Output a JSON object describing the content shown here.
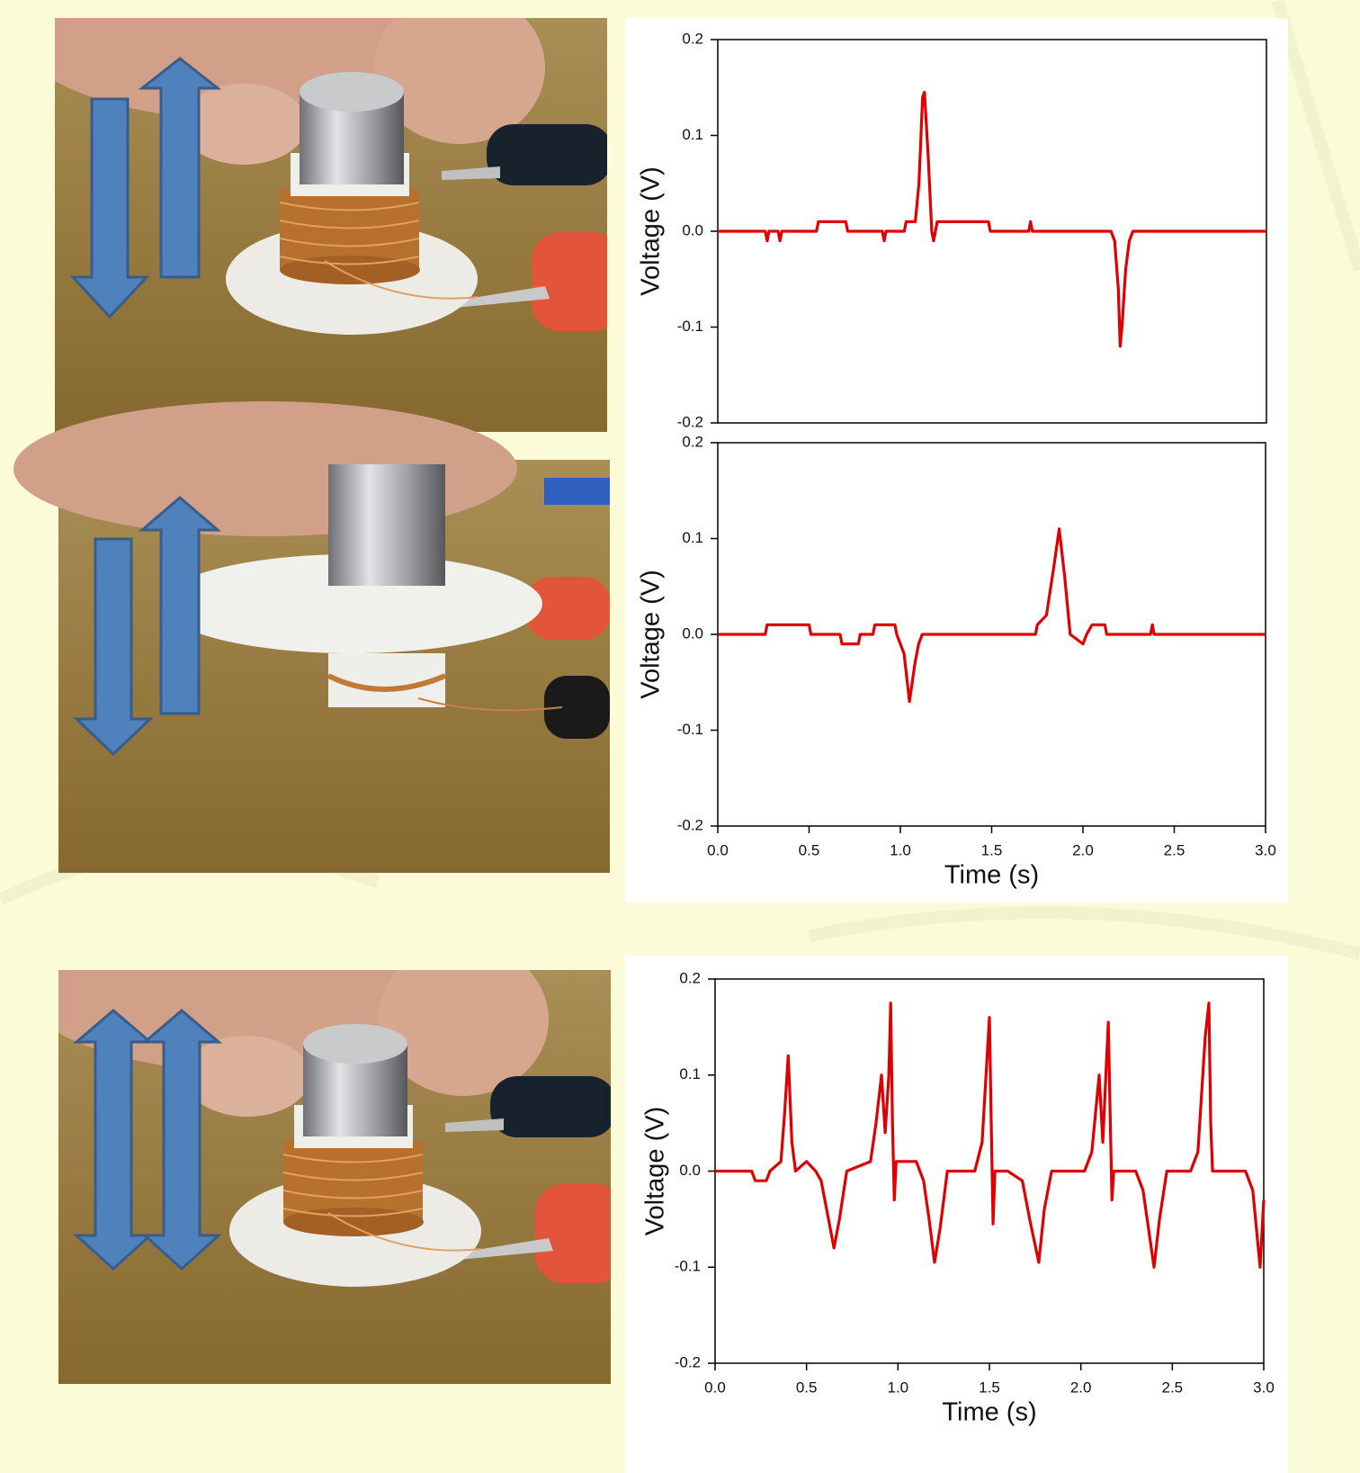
{
  "chart_data": [
    {
      "type": "line",
      "ylabel": "Voltage (V)",
      "xlim": [
        0,
        3
      ],
      "ylim": [
        -0.2,
        0.2
      ],
      "yticks": [
        -0.2,
        -0.1,
        {
          "value": 0,
          "label": "0.0"
        },
        0.1,
        0.2
      ],
      "series": [
        {
          "color": "#e00000",
          "x": [
            0,
            0.26,
            0.27,
            0.28,
            0.33,
            0.34,
            0.35,
            0.54,
            0.55,
            0.7,
            0.71,
            0.9,
            0.91,
            0.92,
            1.02,
            1.03,
            1.08,
            1.1,
            1.12,
            1.13,
            1.15,
            1.17,
            1.18,
            1.2,
            1.22,
            1.48,
            1.49,
            1.7,
            1.71,
            1.72,
            2.15,
            2.17,
            2.19,
            2.2,
            2.21,
            2.23,
            2.25,
            2.27,
            3
          ],
          "values": [
            0,
            0,
            -0.01,
            0,
            0,
            -0.01,
            0,
            0,
            0.01,
            0.01,
            0,
            0,
            -0.01,
            0,
            0,
            0.01,
            0.01,
            0.05,
            0.14,
            0.145,
            0.08,
            0,
            -0.01,
            0.01,
            0.01,
            0.01,
            0,
            0,
            0.01,
            0,
            0,
            -0.01,
            -0.06,
            -0.12,
            -0.1,
            -0.04,
            -0.01,
            0,
            0
          ]
        }
      ]
    },
    {
      "type": "line",
      "ylabel": "Voltage (V)",
      "xlabel": "Time (s)",
      "xlim": [
        0,
        3
      ],
      "ylim": [
        -0.2,
        0.2
      ],
      "xticks": [
        {
          "value": 0,
          "label": "0.0"
        },
        0.5,
        {
          "value": 1,
          "label": "1.0"
        },
        1.5,
        {
          "value": 2,
          "label": "2.0"
        },
        2.5,
        {
          "value": 3,
          "label": "3.0"
        }
      ],
      "yticks": [
        -0.2,
        -0.1,
        {
          "value": 0,
          "label": "0.0"
        },
        0.1,
        0.2
      ],
      "series": [
        {
          "color": "#e00000",
          "x": [
            0,
            0.26,
            0.27,
            0.5,
            0.51,
            0.67,
            0.68,
            0.77,
            0.78,
            0.85,
            0.86,
            0.97,
            0.98,
            1.02,
            1.05,
            1.08,
            1.1,
            1.12,
            1.74,
            1.75,
            1.8,
            1.84,
            1.87,
            1.9,
            1.93,
            2.0,
            2.02,
            2.05,
            2.07,
            2.12,
            2.13,
            2.37,
            2.38,
            2.39,
            3
          ],
          "values": [
            0,
            0,
            0.01,
            0.01,
            0,
            0,
            -0.01,
            -0.01,
            0,
            0,
            0.01,
            0.01,
            0,
            -0.02,
            -0.07,
            -0.03,
            -0.01,
            0,
            0,
            0.01,
            0.02,
            0.07,
            0.11,
            0.06,
            0,
            -0.01,
            0,
            0.01,
            0.01,
            0.01,
            0,
            0,
            0.01,
            0,
            0
          ]
        }
      ]
    },
    {
      "type": "line",
      "ylabel": "Voltage (V)",
      "xlabel": "Time (s)",
      "xlim": [
        0,
        3
      ],
      "ylim": [
        -0.2,
        0.2
      ],
      "xticks": [
        {
          "value": 0,
          "label": "0.0"
        },
        0.5,
        {
          "value": 1,
          "label": "1.0"
        },
        1.5,
        {
          "value": 2,
          "label": "2.0"
        },
        2.5,
        {
          "value": 3,
          "label": "3.0"
        }
      ],
      "yticks": [
        -0.2,
        -0.1,
        {
          "value": 0,
          "label": "0.0"
        },
        0.1,
        0.2
      ],
      "series": [
        {
          "color": "#e00000",
          "x": [
            0,
            0.2,
            0.22,
            0.28,
            0.3,
            0.36,
            0.38,
            0.4,
            0.42,
            0.44,
            0.5,
            0.55,
            0.58,
            0.62,
            0.65,
            0.68,
            0.72,
            0.85,
            0.88,
            0.91,
            0.93,
            0.95,
            0.96,
            0.97,
            0.98,
            0.99,
            1.1,
            1.14,
            1.17,
            1.2,
            1.23,
            1.27,
            1.42,
            1.46,
            1.5,
            1.51,
            1.52,
            1.53,
            1.6,
            1.68,
            1.72,
            1.77,
            1.8,
            1.84,
            2.02,
            2.06,
            2.1,
            2.12,
            2.15,
            2.16,
            2.17,
            2.18,
            2.3,
            2.34,
            2.37,
            2.4,
            2.43,
            2.47,
            2.6,
            2.64,
            2.68,
            2.7,
            2.71,
            2.72,
            2.9,
            2.94,
            2.98,
            3.0
          ],
          "values": [
            0,
            0,
            -0.01,
            -0.01,
            0,
            0.01,
            0.06,
            0.12,
            0.03,
            0,
            0.01,
            0,
            -0.01,
            -0.05,
            -0.08,
            -0.05,
            0,
            0.01,
            0.05,
            0.1,
            0.04,
            0.1,
            0.175,
            0.05,
            -0.03,
            0.01,
            0.01,
            -0.01,
            -0.05,
            -0.095,
            -0.06,
            0,
            0,
            0.03,
            0.16,
            0.05,
            -0.055,
            0,
            0,
            -0.01,
            -0.05,
            -0.095,
            -0.04,
            0,
            0,
            0.02,
            0.1,
            0.03,
            0.155,
            0.06,
            -0.03,
            0,
            0,
            -0.02,
            -0.06,
            -0.1,
            -0.05,
            0,
            0,
            0.02,
            0.14,
            0.175,
            0.05,
            0,
            0,
            -0.02,
            -0.1,
            -0.03
          ]
        }
      ]
    }
  ]
}
